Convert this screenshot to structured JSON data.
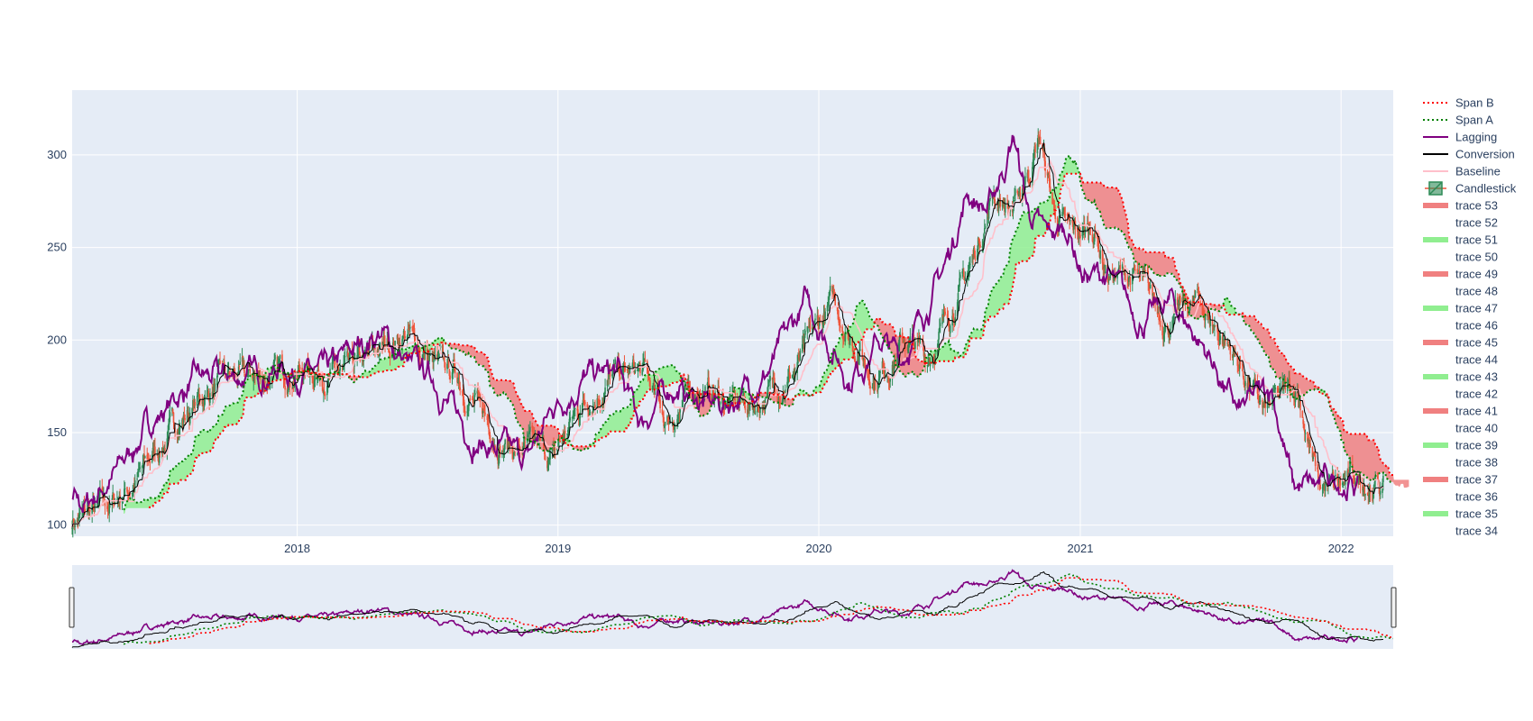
{
  "chart_data": {
    "type": "line",
    "title": "",
    "xlabel": "",
    "ylabel": "",
    "xlim": [
      "2017-02-20",
      "2022-03-15"
    ],
    "ylim": [
      94,
      335
    ],
    "x_ticks": [
      "2018",
      "2019",
      "2020",
      "2021",
      "2022"
    ],
    "y_ticks": [
      100,
      150,
      200,
      250,
      300
    ],
    "grid": true,
    "range_slider": true,
    "legend_position": "right",
    "colors": {
      "plot_bg": "#e5ecf6",
      "grid": "#ffffff",
      "span_b": "#ff0000",
      "span_a": "#008000",
      "lagging": "#800080",
      "conversion": "#000000",
      "baseline": "#ffc0cb",
      "candle_up": "#2e8b57",
      "candle_down": "#ef553b",
      "cloud_bull": "#90ee90",
      "cloud_bear": "#f08080",
      "tick_text": "#2a3f5f"
    },
    "legend": [
      {
        "label": "Span B",
        "kind": "line-dotted",
        "color": "#ff0000"
      },
      {
        "label": "Span A",
        "kind": "line-dotted",
        "color": "#008000"
      },
      {
        "label": "Lagging",
        "kind": "line",
        "color": "#800080"
      },
      {
        "label": "Conversion",
        "kind": "line",
        "color": "#000000"
      },
      {
        "label": "Baseline",
        "kind": "line",
        "color": "#ffc0cb"
      },
      {
        "label": "Candlestick",
        "kind": "candle",
        "color": "#2e8b57"
      },
      {
        "label": "trace 53",
        "kind": "fill",
        "color": "#f08080"
      },
      {
        "label": "trace 52",
        "kind": "none",
        "color": ""
      },
      {
        "label": "trace 51",
        "kind": "fill",
        "color": "#90ee90"
      },
      {
        "label": "trace 50",
        "kind": "none",
        "color": ""
      },
      {
        "label": "trace 49",
        "kind": "fill",
        "color": "#f08080"
      },
      {
        "label": "trace 48",
        "kind": "none",
        "color": ""
      },
      {
        "label": "trace 47",
        "kind": "fill",
        "color": "#90ee90"
      },
      {
        "label": "trace 46",
        "kind": "none",
        "color": ""
      },
      {
        "label": "trace 45",
        "kind": "fill",
        "color": "#f08080"
      },
      {
        "label": "trace 44",
        "kind": "none",
        "color": ""
      },
      {
        "label": "trace 43",
        "kind": "fill",
        "color": "#90ee90"
      },
      {
        "label": "trace 42",
        "kind": "none",
        "color": ""
      },
      {
        "label": "trace 41",
        "kind": "fill",
        "color": "#f08080"
      },
      {
        "label": "trace 40",
        "kind": "none",
        "color": ""
      },
      {
        "label": "trace 39",
        "kind": "fill",
        "color": "#90ee90"
      },
      {
        "label": "trace 38",
        "kind": "none",
        "color": ""
      },
      {
        "label": "trace 37",
        "kind": "fill",
        "color": "#f08080"
      },
      {
        "label": "trace 36",
        "kind": "none",
        "color": ""
      },
      {
        "label": "trace 35",
        "kind": "fill",
        "color": "#90ee90"
      },
      {
        "label": "trace 34",
        "kind": "none",
        "color": ""
      }
    ],
    "price_anchors": [
      [
        "2017-02-20",
        103
      ],
      [
        "2017-04-15",
        110
      ],
      [
        "2017-06-01",
        130
      ],
      [
        "2017-07-15",
        155
      ],
      [
        "2017-09-15",
        178
      ],
      [
        "2017-11-15",
        180
      ],
      [
        "2018-01-15",
        185
      ],
      [
        "2018-03-15",
        180
      ],
      [
        "2018-06-01",
        205
      ],
      [
        "2018-07-15",
        185
      ],
      [
        "2018-08-15",
        180
      ],
      [
        "2018-09-15",
        160
      ],
      [
        "2018-10-15",
        145
      ],
      [
        "2018-12-25",
        135
      ],
      [
        "2019-02-01",
        165
      ],
      [
        "2019-03-15",
        180
      ],
      [
        "2019-05-01",
        182
      ],
      [
        "2019-06-01",
        155
      ],
      [
        "2019-07-15",
        175
      ],
      [
        "2019-09-01",
        165
      ],
      [
        "2019-10-01",
        165
      ],
      [
        "2019-12-01",
        185
      ],
      [
        "2020-01-20",
        220
      ],
      [
        "2020-03-20",
        180
      ],
      [
        "2020-05-01",
        200
      ],
      [
        "2020-06-01",
        190
      ],
      [
        "2020-08-01",
        240
      ],
      [
        "2020-09-01",
        280
      ],
      [
        "2020-10-01",
        270
      ],
      [
        "2020-11-05",
        310
      ],
      [
        "2020-11-25",
        270
      ],
      [
        "2020-12-20",
        255
      ],
      [
        "2021-01-20",
        260
      ],
      [
        "2021-02-10",
        235
      ],
      [
        "2021-03-15",
        235
      ],
      [
        "2021-05-01",
        210
      ],
      [
        "2021-06-15",
        220
      ],
      [
        "2021-08-01",
        195
      ],
      [
        "2021-09-15",
        160
      ],
      [
        "2021-11-01",
        175
      ],
      [
        "2021-12-01",
        120
      ],
      [
        "2022-01-01",
        120
      ],
      [
        "2022-02-01",
        125
      ],
      [
        "2022-03-01",
        120
      ]
    ]
  }
}
